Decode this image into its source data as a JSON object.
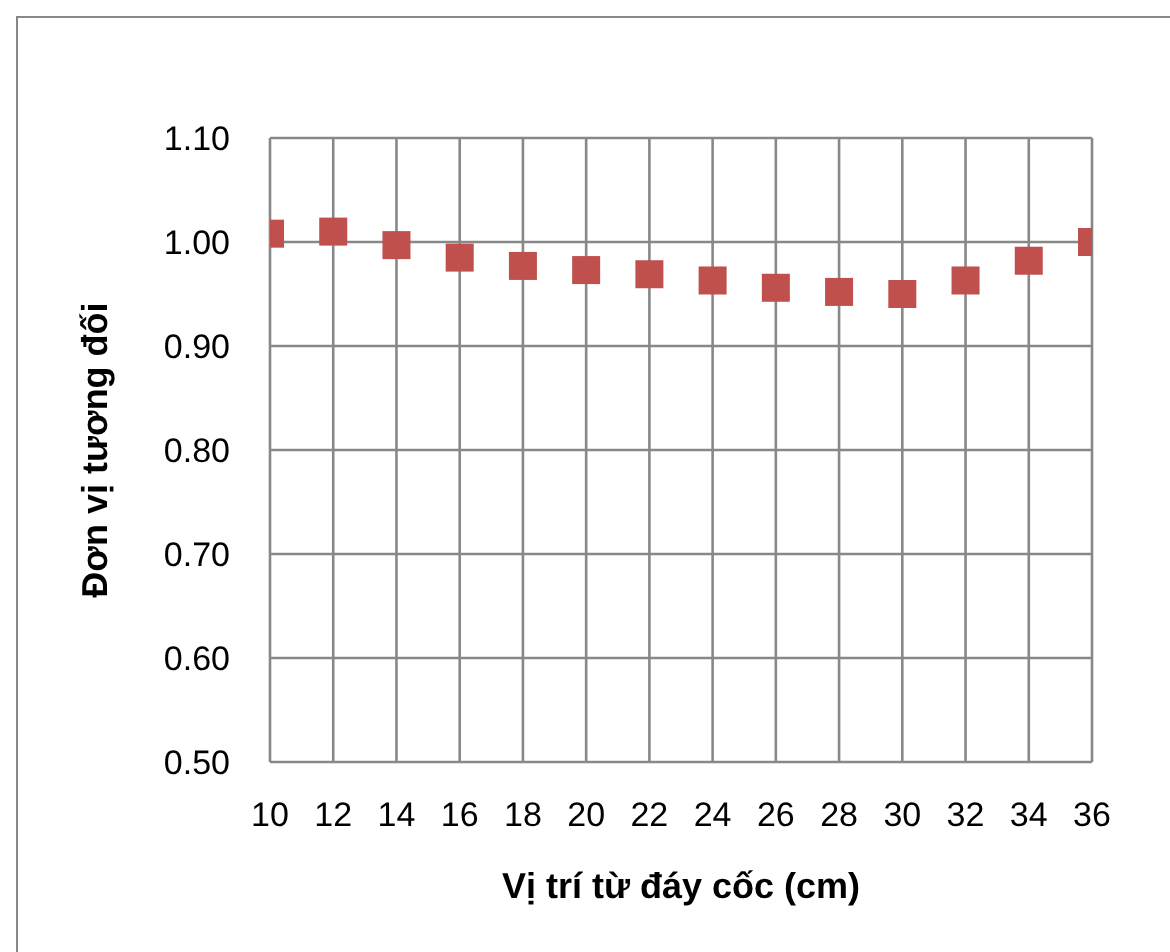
{
  "chart_data": {
    "type": "scatter",
    "xlabel": "Vị trí từ đáy cốc (cm)",
    "ylabel": "Đơn vị tương đối",
    "x": [
      10,
      12,
      14,
      16,
      18,
      20,
      22,
      24,
      26,
      28,
      30,
      32,
      34,
      36
    ],
    "values": [
      1.008,
      1.01,
      0.997,
      0.985,
      0.977,
      0.973,
      0.969,
      0.963,
      0.956,
      0.952,
      0.95,
      0.963,
      0.982,
      1.0
    ],
    "color": "#c0504d",
    "marker": "square",
    "xlim": [
      10,
      36
    ],
    "xticks": [
      10,
      12,
      14,
      16,
      18,
      20,
      22,
      24,
      26,
      28,
      30,
      32,
      34,
      36
    ],
    "ylim": [
      0.5,
      1.1
    ],
    "yticks": [
      {
        "value": 0.5,
        "label": "0.50"
      },
      {
        "value": 0.6,
        "label": "0.60"
      },
      {
        "value": 0.7,
        "label": "0.70"
      },
      {
        "value": 0.8,
        "label": "0.80"
      },
      {
        "value": 0.9,
        "label": "0.90"
      },
      {
        "value": 1.0,
        "label": "1.00"
      },
      {
        "value": 1.1,
        "label": "1.10"
      }
    ],
    "grid": true
  }
}
